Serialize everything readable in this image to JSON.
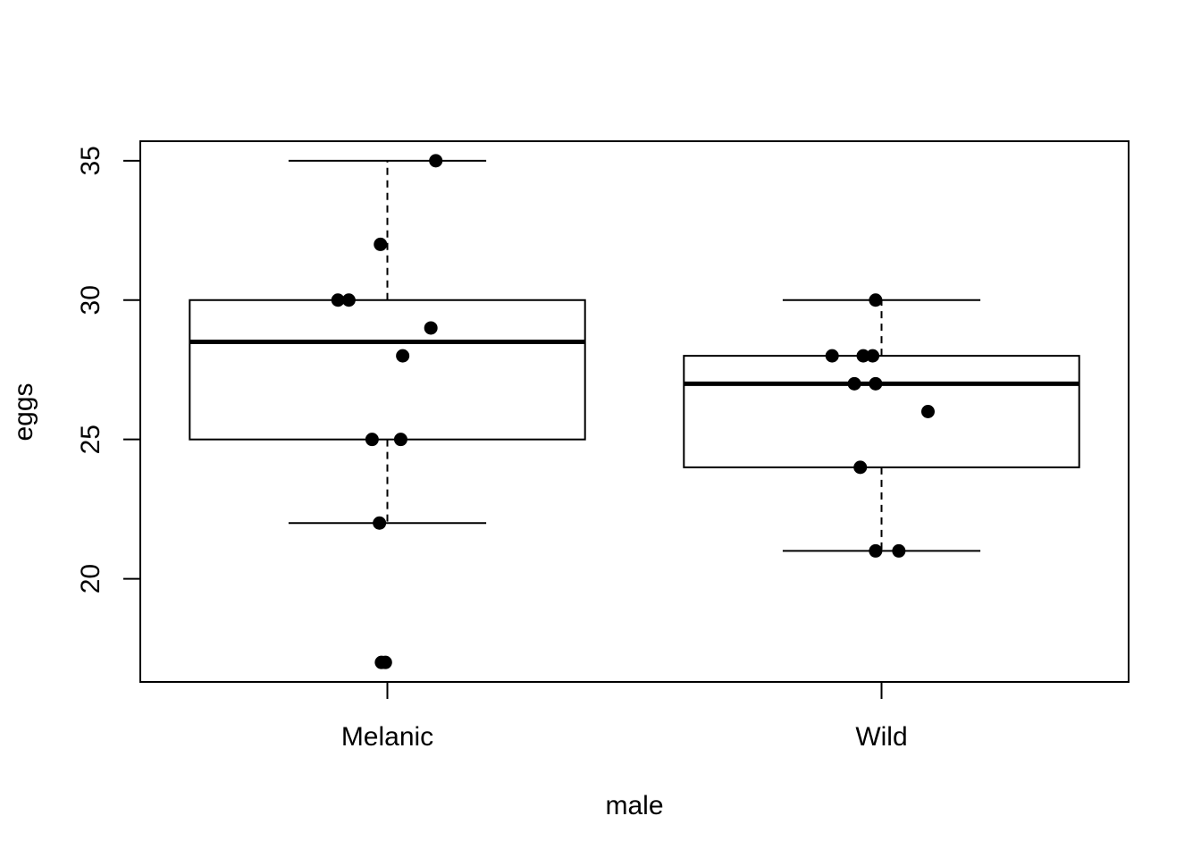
{
  "chart_data": {
    "type": "boxplot",
    "title": "",
    "xlabel": "male",
    "ylabel": "eggs",
    "categories": [
      "Melanic",
      "Wild"
    ],
    "ylim": [
      16.3,
      35.7
    ],
    "yticks": [
      20,
      25,
      30,
      35
    ],
    "ytick_labels": [
      "20",
      "25",
      "30",
      "35"
    ],
    "boxes": [
      {
        "name": "Melanic",
        "lower_whisker": 22,
        "q1": 25,
        "median": 28.5,
        "q3": 30,
        "upper_whisker": 35
      },
      {
        "name": "Wild",
        "lower_whisker": 21,
        "q1": 24,
        "median": 27,
        "q3": 28,
        "upper_whisker": 30
      }
    ],
    "points": [
      {
        "category": "Melanic",
        "jitter": -0.012,
        "value": 17
      },
      {
        "category": "Melanic",
        "jitter": -0.004,
        "value": 17
      },
      {
        "category": "Melanic",
        "jitter": -0.016,
        "value": 22
      },
      {
        "category": "Melanic",
        "jitter": -0.031,
        "value": 25
      },
      {
        "category": "Melanic",
        "jitter": 0.027,
        "value": 25
      },
      {
        "category": "Melanic",
        "jitter": 0.031,
        "value": 28
      },
      {
        "category": "Melanic",
        "jitter": 0.088,
        "value": 29
      },
      {
        "category": "Melanic",
        "jitter": -0.1,
        "value": 30
      },
      {
        "category": "Melanic",
        "jitter": -0.078,
        "value": 30
      },
      {
        "category": "Melanic",
        "jitter": -0.014,
        "value": 32
      },
      {
        "category": "Melanic",
        "jitter": 0.098,
        "value": 35
      },
      {
        "category": "Wild",
        "jitter": -0.012,
        "value": 21
      },
      {
        "category": "Wild",
        "jitter": 0.035,
        "value": 21
      },
      {
        "category": "Wild",
        "jitter": -0.043,
        "value": 24
      },
      {
        "category": "Wild",
        "jitter": 0.094,
        "value": 26
      },
      {
        "category": "Wild",
        "jitter": -0.055,
        "value": 27
      },
      {
        "category": "Wild",
        "jitter": -0.012,
        "value": 27
      },
      {
        "category": "Wild",
        "jitter": -0.1,
        "value": 28
      },
      {
        "category": "Wild",
        "jitter": -0.037,
        "value": 28
      },
      {
        "category": "Wild",
        "jitter": -0.018,
        "value": 28
      },
      {
        "category": "Wild",
        "jitter": -0.012,
        "value": 30
      }
    ]
  }
}
